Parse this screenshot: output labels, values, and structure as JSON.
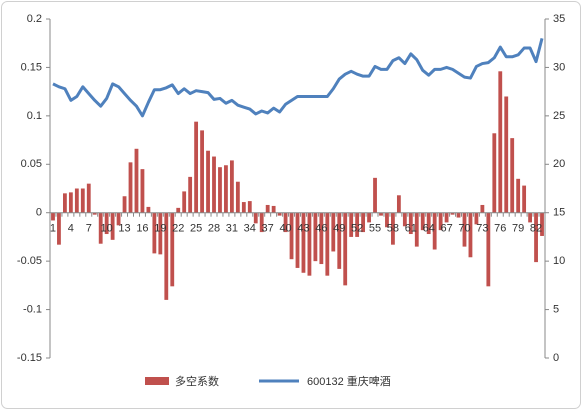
{
  "chart_data": {
    "type": "bar_line",
    "categories": [
      "1",
      null,
      null,
      "4",
      null,
      null,
      "7",
      null,
      null,
      "10",
      null,
      null,
      "13",
      null,
      null,
      "16",
      null,
      null,
      "19",
      null,
      null,
      "22",
      null,
      null,
      "25",
      null,
      null,
      "28",
      null,
      null,
      "31",
      null,
      null,
      "34",
      null,
      null,
      "37",
      null,
      null,
      "40",
      null,
      null,
      "43",
      null,
      null,
      "46",
      null,
      null,
      "49",
      null,
      null,
      "52",
      null,
      null,
      "55",
      null,
      null,
      "58",
      null,
      null,
      "61",
      null,
      null,
      "64",
      null,
      null,
      "67",
      null,
      null,
      "70",
      null,
      null,
      "73",
      null,
      null,
      "76",
      null,
      null,
      "79",
      null,
      null,
      "82",
      null
    ],
    "series": [
      {
        "name": "多空系数",
        "type": "bar",
        "color": "#c0504d",
        "values": [
          -0.008,
          -0.033,
          0.02,
          0.021,
          0.025,
          0.025,
          0.03,
          -0.002,
          -0.032,
          -0.022,
          -0.028,
          -0.013,
          0.017,
          0.052,
          0.066,
          0.045,
          0.006,
          -0.042,
          -0.043,
          -0.09,
          -0.076,
          0.005,
          0.022,
          0.037,
          0.094,
          0.085,
          0.064,
          0.058,
          0.047,
          0.049,
          0.054,
          0.032,
          0.011,
          0.012,
          -0.011,
          -0.02,
          0.008,
          0.007,
          -0.003,
          -0.02,
          -0.048,
          -0.057,
          -0.062,
          -0.065,
          -0.05,
          -0.053,
          -0.065,
          -0.04,
          -0.058,
          -0.075,
          -0.025,
          -0.025,
          -0.02,
          -0.01,
          0.036,
          -0.003,
          -0.015,
          -0.033,
          0.018,
          -0.014,
          -0.022,
          -0.035,
          -0.018,
          -0.022,
          -0.038,
          -0.018,
          -0.01,
          -0.002,
          -0.005,
          -0.035,
          -0.046,
          -0.012,
          0.008,
          -0.076,
          0.082,
          0.146,
          0.12,
          0.077,
          0.035,
          0.028,
          -0.01,
          -0.051,
          -0.024
        ]
      },
      {
        "name": "600132 重庆啤酒",
        "type": "line",
        "axis": "y2",
        "color": "#4f81bd",
        "values": [
          28.3,
          28,
          27.8,
          26.6,
          27,
          28,
          27.3,
          26.6,
          26,
          26.8,
          28.3,
          28,
          27.3,
          26.6,
          26,
          25,
          26.4,
          27.7,
          27.7,
          27.9,
          28.2,
          27.3,
          27.8,
          27.3,
          27.6,
          27.5,
          27.4,
          26.7,
          26.8,
          26.3,
          26.6,
          26.1,
          25.9,
          25.7,
          25.2,
          25.5,
          25.3,
          25.8,
          25.4,
          26.2,
          26.6,
          27,
          27,
          27,
          27,
          27,
          27,
          27.8,
          28.8,
          29.3,
          29.6,
          29.3,
          29.1,
          29.1,
          30.1,
          29.8,
          29.8,
          30.7,
          31,
          30.4,
          31.4,
          30.8,
          29.7,
          29.2,
          29.8,
          29.8,
          30,
          29.8,
          29.4,
          29,
          28.9,
          30.1,
          30.4,
          30.5,
          31,
          32.1,
          31.1,
          31.1,
          31.3,
          32,
          32,
          30.6,
          33
        ]
      }
    ],
    "ylim": [
      -0.15,
      0.2
    ],
    "yticks": [
      -0.15,
      -0.1,
      -0.05,
      0,
      0.05,
      0.1,
      0.15,
      0.2
    ],
    "y2lim": [
      0,
      35
    ],
    "y2ticks": [
      0,
      5,
      10,
      15,
      20,
      25,
      30,
      35
    ],
    "grid": false,
    "legend": "bottom"
  }
}
